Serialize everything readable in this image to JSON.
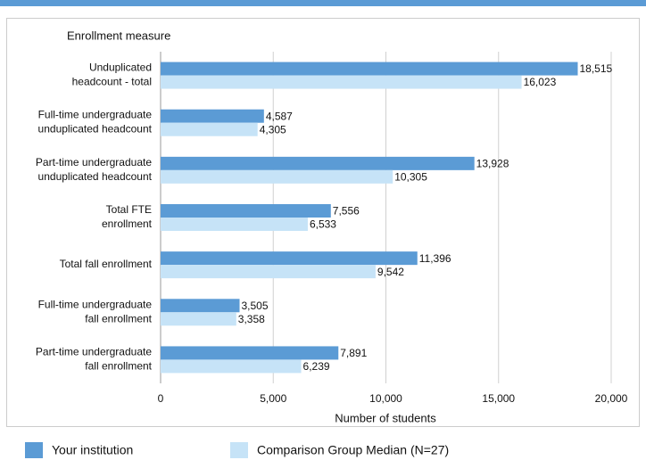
{
  "chart_data": {
    "type": "bar",
    "orientation": "horizontal",
    "y_axis_title": "Enrollment measure",
    "x_axis_title": "Number of students",
    "categories": [
      "Unduplicated\nheadcount - total",
      "Full-time undergraduate\nunduplicated headcount",
      "Part-time undergraduate\nunduplicated headcount",
      "Total FTE\nenrollment",
      "Total fall enrollment",
      "Full-time undergraduate\nfall enrollment",
      "Part-time undergraduate\nfall enrollment"
    ],
    "series": [
      {
        "name": "Your institution",
        "color": "#5b9bd5",
        "values": [
          18515,
          4587,
          13928,
          7556,
          11396,
          3505,
          7891
        ],
        "value_labels": [
          "18,515",
          "4,587",
          "13,928",
          "7,556",
          "11,396",
          "3,505",
          "7,891"
        ]
      },
      {
        "name": "Comparison Group Median (N=27)",
        "color": "#c6e3f7",
        "values": [
          16023,
          4305,
          10305,
          6533,
          9542,
          3358,
          6239
        ],
        "value_labels": [
          "16,023",
          "4,305",
          "10,305",
          "6,533",
          "9,542",
          "3,358",
          "6,239"
        ]
      }
    ],
    "xlim": [
      0,
      20000
    ],
    "xticks": [
      0,
      {
        "value": 5000,
        "label": "5,000"
      },
      {
        "value": 10000,
        "label": "10,000"
      },
      {
        "value": 15000,
        "label": "15,000"
      },
      {
        "value": 20000,
        "label": "20,000"
      }
    ],
    "grid": true
  }
}
